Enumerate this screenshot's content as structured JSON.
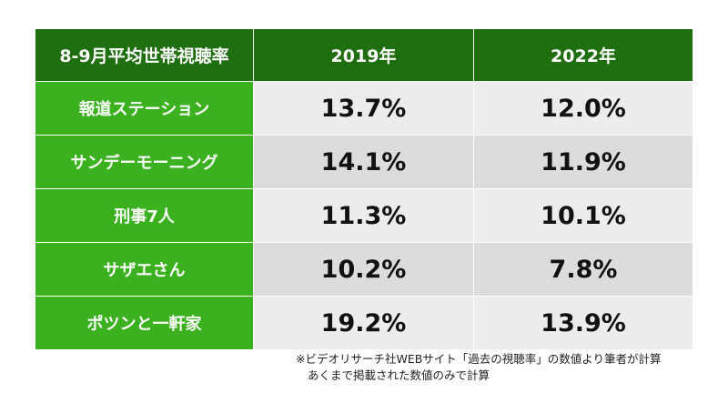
{
  "chart_data": {
    "type": "table",
    "title": "8-9月平均世帯視聴率",
    "columns": [
      "2019年",
      "2022年"
    ],
    "rows": [
      {
        "label": "報道ステーション",
        "values": [
          "13.7%",
          "12.0%"
        ]
      },
      {
        "label": "サンデーモーニング",
        "values": [
          "14.1%",
          "11.9%"
        ]
      },
      {
        "label": "刑事7人",
        "values": [
          "11.3%",
          "10.1%"
        ]
      },
      {
        "label": "サザエさん",
        "values": [
          "10.2%",
          "7.8%"
        ]
      },
      {
        "label": "ポツンと一軒家",
        "values": [
          "19.2%",
          "13.9%"
        ]
      }
    ],
    "notes": [
      "※ビデオリサーチ社WEBサイト「過去の視聴率」の数値より筆者が計算",
      "あくまで掲載された数値のみで計算"
    ]
  },
  "colors": {
    "header_bg": "#1f6e10",
    "label_bg": "#3bb11f",
    "cell_odd": "#ececec",
    "cell_even": "#dcdcdc"
  }
}
